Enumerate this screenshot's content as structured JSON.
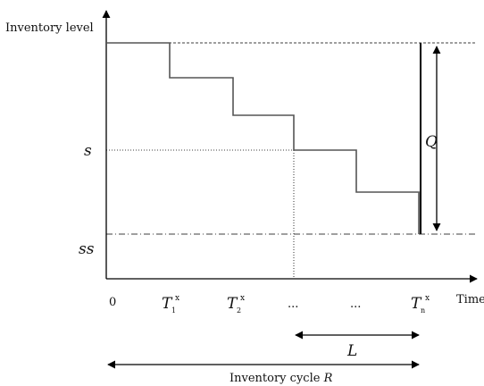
{
  "axes": {
    "y_label": "Inventory level",
    "x_label": "Time"
  },
  "levels": {
    "s": "s",
    "ss": "ss"
  },
  "ticks": {
    "origin": "0",
    "t1_base": "T",
    "t1_sub": "1",
    "t1_sup": "x",
    "t2_base": "T",
    "t2_sub": "2",
    "t2_sup": "x",
    "ellipsis_1": "...",
    "ellipsis_2": "...",
    "tn_base": "T",
    "tn_sub": "n",
    "tn_sup": "x"
  },
  "annotations": {
    "order_quantity": "Q",
    "lead_time": "L",
    "cycle_prefix": "Inventory cycle ",
    "cycle_var": "R"
  }
}
